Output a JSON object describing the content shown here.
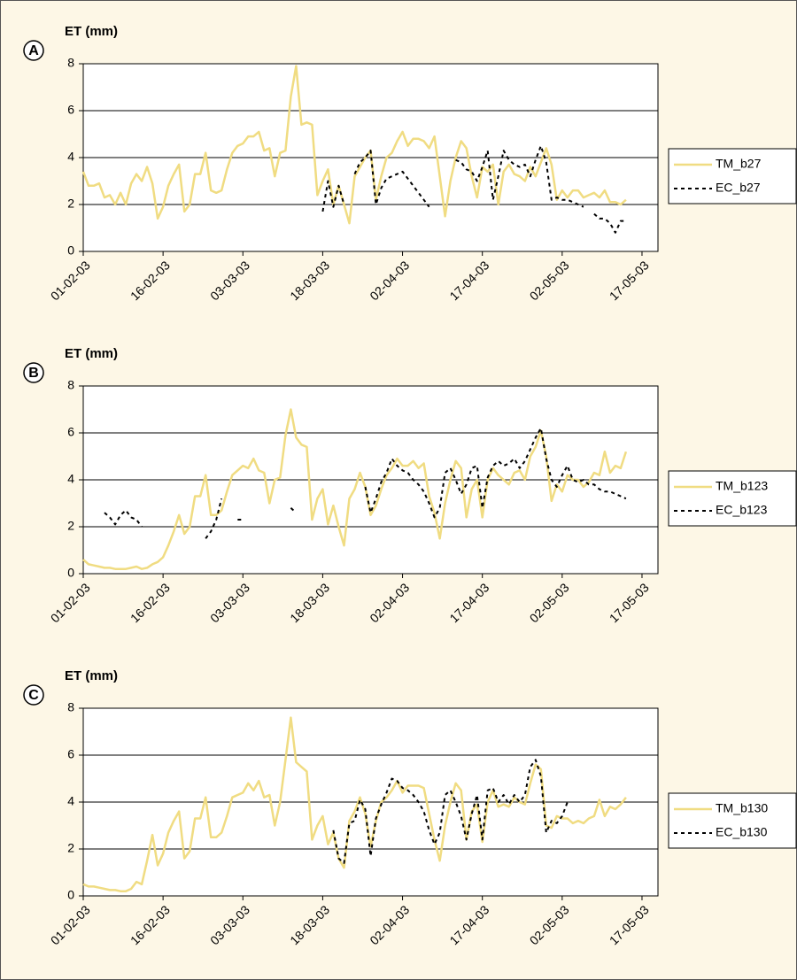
{
  "chart_data": [
    {
      "type": "line",
      "panel": "A",
      "ylabel": "ET (mm)",
      "legend": "right",
      "grid": true,
      "xlim": [
        "01-02-03",
        "20-05-03"
      ],
      "xticks": [
        "01-02-03",
        "16-02-03",
        "03-03-03",
        "18-03-03",
        "02-04-03",
        "17-04-03",
        "02-05-03",
        "17-05-03"
      ],
      "ylim": [
        0,
        8
      ],
      "yticks": [
        0,
        2,
        4,
        6,
        8
      ],
      "x": [
        "01-02-03",
        "02-02-03",
        "03-02-03",
        "04-02-03",
        "05-02-03",
        "06-02-03",
        "07-02-03",
        "08-02-03",
        "09-02-03",
        "10-02-03",
        "11-02-03",
        "12-02-03",
        "13-02-03",
        "14-02-03",
        "15-02-03",
        "16-02-03",
        "17-02-03",
        "18-02-03",
        "19-02-03",
        "20-02-03",
        "21-02-03",
        "22-02-03",
        "23-02-03",
        "24-02-03",
        "25-02-03",
        "26-02-03",
        "27-02-03",
        "28-02-03",
        "01-03-03",
        "02-03-03",
        "03-03-03",
        "04-03-03",
        "05-03-03",
        "06-03-03",
        "07-03-03",
        "08-03-03",
        "09-03-03",
        "10-03-03",
        "11-03-03",
        "12-03-03",
        "13-03-03",
        "14-03-03",
        "15-03-03",
        "16-03-03",
        "17-03-03",
        "18-03-03",
        "19-03-03",
        "20-03-03",
        "21-03-03",
        "22-03-03",
        "23-03-03",
        "24-03-03",
        "25-03-03",
        "26-03-03",
        "27-03-03",
        "28-03-03",
        "29-03-03",
        "30-03-03",
        "31-03-03",
        "01-04-03",
        "02-04-03",
        "03-04-03",
        "04-04-03",
        "05-04-03",
        "06-04-03",
        "07-04-03",
        "08-04-03",
        "09-04-03",
        "10-04-03",
        "11-04-03",
        "12-04-03",
        "13-04-03",
        "14-04-03",
        "15-04-03",
        "16-04-03",
        "17-04-03",
        "18-04-03",
        "19-04-03",
        "20-04-03",
        "21-04-03",
        "22-04-03",
        "23-04-03",
        "24-04-03",
        "25-04-03",
        "26-04-03",
        "27-04-03",
        "28-04-03",
        "29-04-03",
        "30-04-03",
        "01-05-03",
        "02-05-03",
        "03-05-03",
        "04-05-03",
        "05-05-03",
        "06-05-03",
        "07-05-03",
        "08-05-03",
        "09-05-03",
        "10-05-03",
        "11-05-03",
        "12-05-03",
        "13-05-03",
        "14-05-03"
      ],
      "series": [
        {
          "name": "TM_b27",
          "color": "#f0dc82",
          "dash": false,
          "values": [
            3.4,
            2.8,
            2.8,
            2.9,
            2.3,
            2.4,
            2.0,
            2.5,
            2.0,
            2.9,
            3.3,
            3.0,
            3.6,
            2.9,
            1.4,
            1.9,
            2.8,
            3.3,
            3.7,
            1.7,
            2.0,
            3.3,
            3.3,
            4.2,
            2.6,
            2.5,
            2.6,
            3.5,
            4.2,
            4.5,
            4.6,
            4.9,
            4.9,
            5.1,
            4.3,
            4.4,
            3.2,
            4.2,
            4.3,
            6.6,
            7.9,
            5.4,
            5.5,
            5.4,
            2.4,
            3.0,
            3.5,
            2.0,
            2.8,
            2.0,
            1.2,
            3.2,
            3.6,
            4.0,
            4.3,
            2.2,
            3.2,
            4.0,
            4.2,
            4.7,
            5.1,
            4.5,
            4.8,
            4.8,
            4.7,
            4.4,
            4.9,
            3.2,
            1.5,
            3.0,
            4.0,
            4.7,
            4.4,
            3.2,
            2.3,
            3.6,
            3.4,
            3.7,
            2.0,
            3.4,
            3.7,
            3.3,
            3.2,
            3.0,
            3.6,
            3.2,
            3.8,
            4.4,
            3.7,
            2.2,
            2.6,
            2.3,
            2.6,
            2.6,
            2.3,
            2.4,
            2.5,
            2.3,
            2.6,
            2.1,
            2.1,
            2.0,
            2.2
          ]
        },
        {
          "name": "EC_b27",
          "color": "#000000",
          "dash": true,
          "values": [
            null,
            null,
            null,
            null,
            null,
            null,
            null,
            null,
            null,
            null,
            null,
            null,
            null,
            null,
            null,
            null,
            null,
            null,
            null,
            null,
            null,
            null,
            null,
            null,
            null,
            null,
            null,
            null,
            null,
            null,
            null,
            null,
            null,
            null,
            null,
            null,
            null,
            null,
            null,
            null,
            null,
            null,
            null,
            null,
            null,
            1.7,
            3.0,
            1.9,
            2.8,
            2.0,
            null,
            3.3,
            3.8,
            4.0,
            4.3,
            2.0,
            2.7,
            3.1,
            3.2,
            3.3,
            3.4,
            3.1,
            2.8,
            2.5,
            2.2,
            1.9,
            null,
            null,
            null,
            null,
            3.9,
            3.8,
            3.5,
            3.4,
            3.0,
            3.6,
            4.3,
            2.2,
            3.2,
            4.3,
            3.9,
            3.7,
            3.6,
            3.7,
            3.2,
            3.9,
            4.5,
            3.8,
            2.2,
            2.3,
            2.2,
            2.2,
            2.1,
            2.0,
            1.9,
            null,
            1.6,
            1.4,
            1.4,
            1.2,
            0.8,
            1.3,
            1.3
          ]
        }
      ]
    },
    {
      "type": "line",
      "panel": "B",
      "ylabel": "ET (mm)",
      "legend": "right",
      "grid": true,
      "xlim": [
        "01-02-03",
        "20-05-03"
      ],
      "xticks": [
        "01-02-03",
        "16-02-03",
        "03-03-03",
        "18-03-03",
        "02-04-03",
        "17-04-03",
        "02-05-03",
        "17-05-03"
      ],
      "ylim": [
        0,
        8
      ],
      "yticks": [
        0,
        2,
        4,
        6,
        8
      ],
      "x": [
        "01-02-03",
        "02-02-03",
        "03-02-03",
        "04-02-03",
        "05-02-03",
        "06-02-03",
        "07-02-03",
        "08-02-03",
        "09-02-03",
        "10-02-03",
        "11-02-03",
        "12-02-03",
        "13-02-03",
        "14-02-03",
        "15-02-03",
        "16-02-03",
        "17-02-03",
        "18-02-03",
        "19-02-03",
        "20-02-03",
        "21-02-03",
        "22-02-03",
        "23-02-03",
        "24-02-03",
        "25-02-03",
        "26-02-03",
        "27-02-03",
        "28-02-03",
        "01-03-03",
        "02-03-03",
        "03-03-03",
        "04-03-03",
        "05-03-03",
        "06-03-03",
        "07-03-03",
        "08-03-03",
        "09-03-03",
        "10-03-03",
        "11-03-03",
        "12-03-03",
        "13-03-03",
        "14-03-03",
        "15-03-03",
        "16-03-03",
        "17-03-03",
        "18-03-03",
        "19-03-03",
        "20-03-03",
        "21-03-03",
        "22-03-03",
        "23-03-03",
        "24-03-03",
        "25-03-03",
        "26-03-03",
        "27-03-03",
        "28-03-03",
        "29-03-03",
        "30-03-03",
        "31-03-03",
        "01-04-03",
        "02-04-03",
        "03-04-03",
        "04-04-03",
        "05-04-03",
        "06-04-03",
        "07-04-03",
        "08-04-03",
        "09-04-03",
        "10-04-03",
        "11-04-03",
        "12-04-03",
        "13-04-03",
        "14-04-03",
        "15-04-03",
        "16-04-03",
        "17-04-03",
        "18-04-03",
        "19-04-03",
        "20-04-03",
        "21-04-03",
        "22-04-03",
        "23-04-03",
        "24-04-03",
        "25-04-03",
        "26-04-03",
        "27-04-03",
        "28-04-03",
        "29-04-03",
        "30-04-03",
        "01-05-03",
        "02-05-03",
        "03-05-03",
        "04-05-03",
        "05-05-03",
        "06-05-03",
        "07-05-03",
        "08-05-03",
        "09-05-03",
        "10-05-03",
        "11-05-03",
        "12-05-03",
        "13-05-03",
        "14-05-03"
      ],
      "series": [
        {
          "name": "TM_b123",
          "color": "#f0dc82",
          "dash": false,
          "values": [
            0.6,
            0.4,
            0.35,
            0.3,
            0.25,
            0.25,
            0.2,
            0.2,
            0.2,
            0.25,
            0.3,
            0.2,
            0.25,
            0.4,
            0.5,
            0.7,
            1.2,
            1.8,
            2.5,
            1.7,
            2.0,
            3.3,
            3.3,
            4.2,
            2.5,
            2.5,
            2.7,
            3.5,
            4.2,
            4.4,
            4.6,
            4.5,
            4.9,
            4.4,
            4.3,
            3.0,
            4.0,
            4.1,
            5.9,
            7.0,
            5.8,
            5.5,
            5.4,
            2.3,
            3.2,
            3.6,
            2.1,
            2.9,
            2.0,
            1.2,
            3.2,
            3.6,
            4.3,
            3.7,
            2.5,
            2.9,
            3.6,
            4.2,
            4.5,
            4.9,
            4.6,
            4.6,
            4.8,
            4.5,
            4.7,
            3.3,
            2.6,
            1.5,
            3.0,
            4.0,
            4.8,
            4.5,
            2.4,
            3.6,
            4.0,
            2.4,
            4.0,
            4.5,
            4.2,
            4.0,
            3.8,
            4.3,
            4.4,
            4.0,
            5.0,
            5.4,
            6.1,
            5.0,
            3.1,
            3.8,
            3.5,
            4.2,
            4.0,
            4.0,
            3.7,
            3.9,
            4.3,
            4.2,
            5.2,
            4.3,
            4.6,
            4.5,
            5.2
          ]
        },
        {
          "name": "EC_b123",
          "color": "#000000",
          "dash": true,
          "values": [
            null,
            null,
            null,
            null,
            2.6,
            2.4,
            2.1,
            2.5,
            2.7,
            2.4,
            2.3,
            2.0,
            null,
            null,
            null,
            null,
            null,
            null,
            null,
            null,
            null,
            null,
            null,
            1.5,
            1.8,
            2.3,
            3.2,
            null,
            null,
            2.3,
            2.3,
            null,
            null,
            null,
            null,
            null,
            null,
            null,
            null,
            2.8,
            2.6,
            null,
            null,
            null,
            null,
            null,
            null,
            null,
            null,
            null,
            null,
            null,
            null,
            3.7,
            2.6,
            3.2,
            3.9,
            4.3,
            4.9,
            4.6,
            4.4,
            4.3,
            4.0,
            3.8,
            3.5,
            3.0,
            2.4,
            2.8,
            4.3,
            4.5,
            4.0,
            3.4,
            3.8,
            4.5,
            4.6,
            2.8,
            4.1,
            4.6,
            4.8,
            4.6,
            4.7,
            4.9,
            4.5,
            4.8,
            5.3,
            5.8,
            6.2,
            4.9,
            4.0,
            3.7,
            4.2,
            4.6,
            4.0,
            3.9,
            4.0,
            3.8,
            3.8,
            3.6,
            3.5,
            3.5,
            3.4,
            3.3,
            3.2
          ]
        }
      ]
    },
    {
      "type": "line",
      "panel": "C",
      "ylabel": "ET (mm)",
      "legend": "right",
      "grid": true,
      "xlim": [
        "01-02-03",
        "20-05-03"
      ],
      "xticks": [
        "01-02-03",
        "16-02-03",
        "03-03-03",
        "18-03-03",
        "02-04-03",
        "17-04-03",
        "02-05-03",
        "17-05-03"
      ],
      "ylim": [
        0,
        8
      ],
      "yticks": [
        0,
        2,
        4,
        6,
        8
      ],
      "x": [
        "01-02-03",
        "02-02-03",
        "03-02-03",
        "04-02-03",
        "05-02-03",
        "06-02-03",
        "07-02-03",
        "08-02-03",
        "09-02-03",
        "10-02-03",
        "11-02-03",
        "12-02-03",
        "13-02-03",
        "14-02-03",
        "15-02-03",
        "16-02-03",
        "17-02-03",
        "18-02-03",
        "19-02-03",
        "20-02-03",
        "21-02-03",
        "22-02-03",
        "23-02-03",
        "24-02-03",
        "25-02-03",
        "26-02-03",
        "27-02-03",
        "28-02-03",
        "01-03-03",
        "02-03-03",
        "03-03-03",
        "04-03-03",
        "05-03-03",
        "06-03-03",
        "07-03-03",
        "08-03-03",
        "09-03-03",
        "10-03-03",
        "11-03-03",
        "12-03-03",
        "13-03-03",
        "14-03-03",
        "15-03-03",
        "16-03-03",
        "17-03-03",
        "18-03-03",
        "19-03-03",
        "20-03-03",
        "21-03-03",
        "22-03-03",
        "23-03-03",
        "24-03-03",
        "25-03-03",
        "26-03-03",
        "27-03-03",
        "28-03-03",
        "29-03-03",
        "30-03-03",
        "31-03-03",
        "01-04-03",
        "02-04-03",
        "03-04-03",
        "04-04-03",
        "05-04-03",
        "06-04-03",
        "07-04-03",
        "08-04-03",
        "09-04-03",
        "10-04-03",
        "11-04-03",
        "12-04-03",
        "13-04-03",
        "14-04-03",
        "15-04-03",
        "16-04-03",
        "17-04-03",
        "18-04-03",
        "19-04-03",
        "20-04-03",
        "21-04-03",
        "22-04-03",
        "23-04-03",
        "24-04-03",
        "25-04-03",
        "26-04-03",
        "27-04-03",
        "28-04-03",
        "29-04-03",
        "30-04-03",
        "01-05-03",
        "02-05-03",
        "03-05-03",
        "04-05-03",
        "05-05-03",
        "06-05-03",
        "07-05-03",
        "08-05-03",
        "09-05-03",
        "10-05-03",
        "11-05-03",
        "12-05-03",
        "13-05-03",
        "14-05-03"
      ],
      "series": [
        {
          "name": "TM_b130",
          "color": "#f0dc82",
          "dash": false,
          "values": [
            0.5,
            0.4,
            0.4,
            0.35,
            0.3,
            0.25,
            0.25,
            0.2,
            0.2,
            0.3,
            0.6,
            0.5,
            1.5,
            2.6,
            1.3,
            1.8,
            2.7,
            3.2,
            3.6,
            1.6,
            1.9,
            3.3,
            3.3,
            4.2,
            2.5,
            2.5,
            2.7,
            3.4,
            4.2,
            4.3,
            4.4,
            4.8,
            4.5,
            4.9,
            4.2,
            4.3,
            3.0,
            4.0,
            5.8,
            7.6,
            5.7,
            5.5,
            5.3,
            2.4,
            3.0,
            3.4,
            2.2,
            2.7,
            1.6,
            1.2,
            3.2,
            3.6,
            4.2,
            3.5,
            2.1,
            3.2,
            4.0,
            4.2,
            4.5,
            4.9,
            4.4,
            4.7,
            4.7,
            4.7,
            4.6,
            3.5,
            2.4,
            1.5,
            3.0,
            4.0,
            4.8,
            4.5,
            2.4,
            3.6,
            3.9,
            2.3,
            4.0,
            4.5,
            3.8,
            3.9,
            3.8,
            4.2,
            4.0,
            3.9,
            4.8,
            5.6,
            5.4,
            3.0,
            2.9,
            3.4,
            3.3,
            3.3,
            3.1,
            3.2,
            3.1,
            3.3,
            3.4,
            4.1,
            3.4,
            3.8,
            3.7,
            3.9,
            4.2
          ]
        },
        {
          "name": "EC_b130",
          "color": "#000000",
          "dash": true,
          "values": [
            null,
            null,
            null,
            null,
            null,
            null,
            null,
            null,
            null,
            null,
            null,
            null,
            null,
            null,
            null,
            null,
            null,
            null,
            null,
            null,
            null,
            null,
            null,
            null,
            null,
            null,
            null,
            null,
            null,
            null,
            null,
            null,
            null,
            null,
            null,
            null,
            null,
            null,
            null,
            null,
            null,
            null,
            null,
            null,
            null,
            null,
            null,
            2.8,
            1.6,
            1.4,
            3.1,
            3.2,
            4.1,
            3.7,
            1.7,
            3.3,
            3.9,
            4.4,
            5.0,
            4.9,
            4.6,
            4.5,
            4.3,
            4.0,
            3.6,
            2.8,
            2.2,
            2.7,
            4.3,
            4.5,
            4.0,
            3.4,
            2.4,
            3.5,
            4.3,
            2.4,
            4.5,
            4.6,
            4.0,
            4.3,
            3.9,
            4.3,
            4.0,
            4.3,
            5.5,
            5.8,
            5.1,
            2.7,
            3.2,
            3.1,
            3.4,
            4.0,
            null,
            null,
            null,
            null,
            null,
            null,
            null,
            null,
            null,
            null,
            null
          ]
        }
      ]
    }
  ]
}
